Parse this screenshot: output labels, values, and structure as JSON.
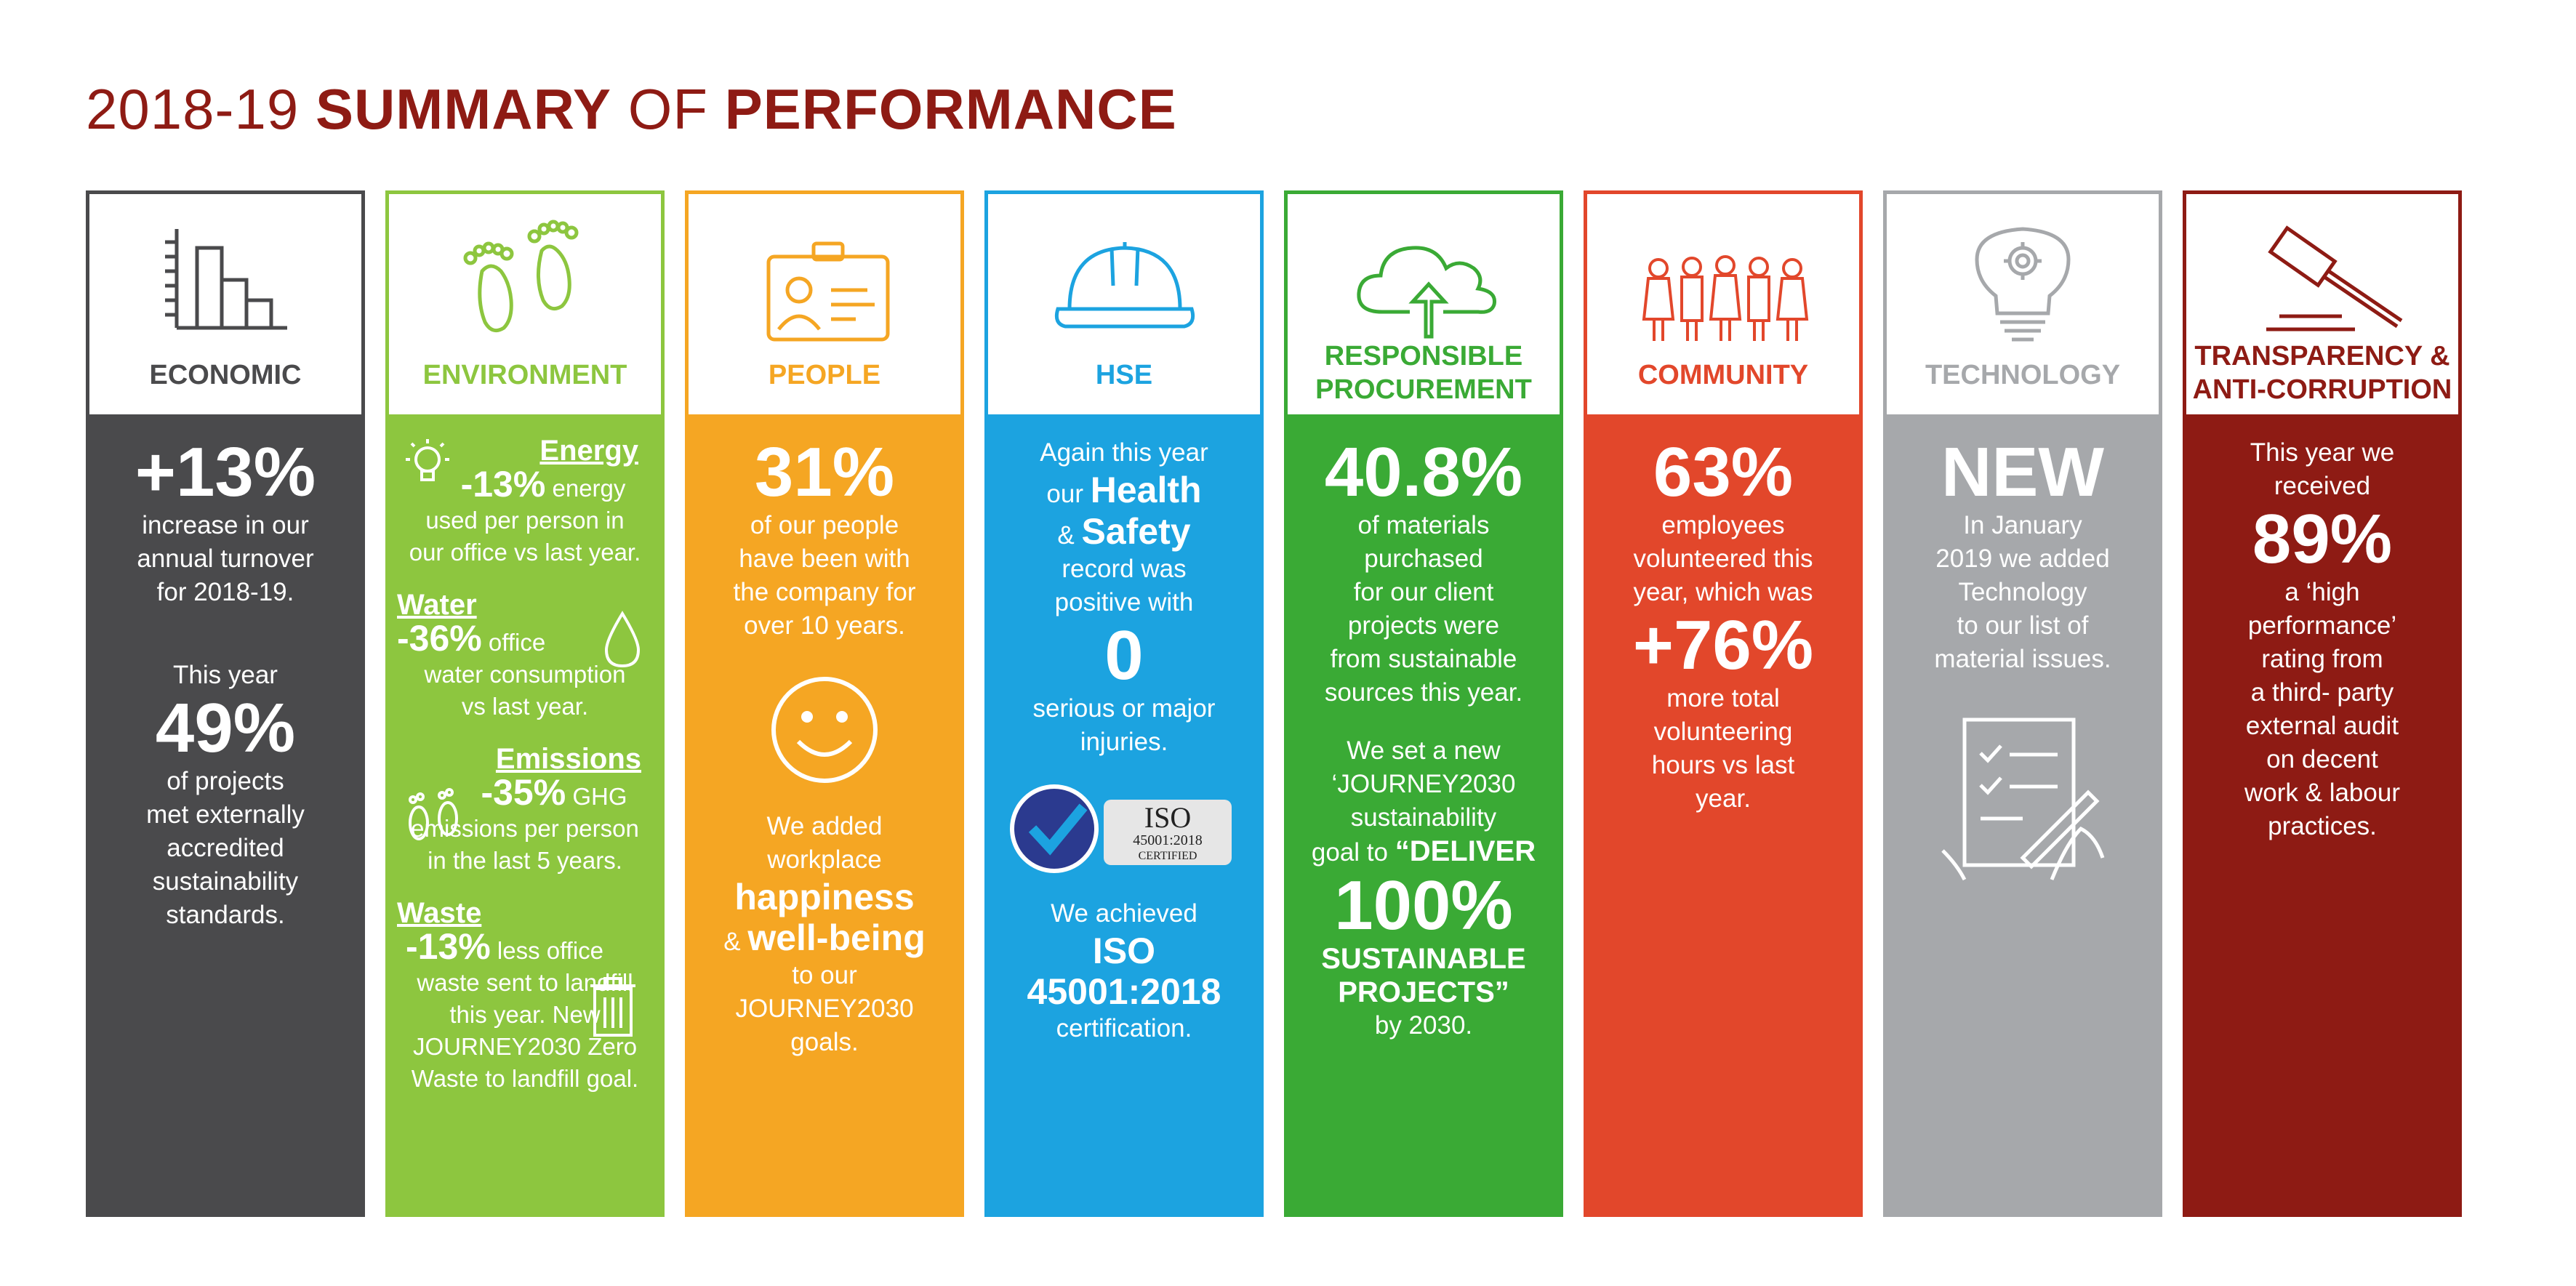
{
  "title": {
    "year": "2018-19",
    "w1": "SUMMARY",
    "w2": "OF",
    "w3": "PERFORMANCE"
  },
  "colors": {
    "economic": "#4a4a4c",
    "environment": "#8dc63f",
    "people": "#f5a623",
    "hse": "#1ca3e0",
    "procurement": "#3aaa35",
    "community": "#e2472b",
    "technology": "#a6a8ab",
    "transparency": "#8e1b14"
  },
  "columns": {
    "economic": {
      "icon": "bar-chart-icon",
      "label": "ECONOMIC",
      "v1": "+13%",
      "t1a": "increase in our",
      "t1b": "annual turnover",
      "t1c": "for 2018-19.",
      "t2": "This year",
      "v2": "49%",
      "t3a": "of projects",
      "t3b": "met externally",
      "t3c": "accredited",
      "t3d": "sustainability",
      "t3e": "standards."
    },
    "environment": {
      "icon": "footprints-icon",
      "label": "ENVIRONMENT",
      "energy_h": "Energy",
      "energy_v": "-13%",
      "energy_t1": "energy",
      "energy_t2": "used per person in",
      "energy_t3": "our office vs last year.",
      "water_h": "Water",
      "water_v": "-36%",
      "water_t1": "office",
      "water_t2": "water consumption",
      "water_t3": "vs last year.",
      "em_h": "Emissions",
      "em_v": "-35%",
      "em_t1": "GHG",
      "em_t2": "emissions per person",
      "em_t3": "in the last 5 years.",
      "waste_h": "Waste",
      "waste_v": "-13%",
      "waste_t1": "less office",
      "waste_t2": "waste sent to landfill",
      "waste_t3": "this year.  New",
      "waste_t4": "JOURNEY2030 Zero",
      "waste_t5": "Waste to landfill  goal."
    },
    "people": {
      "icon": "id-badge-icon",
      "label": "PEOPLE",
      "v1": "31%",
      "t1a": "of our people",
      "t1b": "have been with",
      "t1c": "the company for",
      "t1d": "over 10 years.",
      "t2a": "We added",
      "t2b": "workplace",
      "t2c": "happiness",
      "t2d": "&",
      "t2e": "well-being",
      "t2f": "to our",
      "t2g": "JOURNEY2030",
      "t2h": "goals."
    },
    "hse": {
      "icon": "hard-hat-icon",
      "label": "HSE",
      "t1a": "Again this year",
      "t1b": "our",
      "t1c": "Health",
      "t1d": "&",
      "t1e": "Safety",
      "t1f": "record was",
      "t1g": "positive with",
      "v1": "0",
      "t2a": "serious or major",
      "t2b": "injuries.",
      "iso_mark": "ISO",
      "iso_num": "45001:2018",
      "iso_cert": "CERTIFIED",
      "t3a": "We achieved",
      "t3b": "ISO",
      "t3c": "45001:2018",
      "t3d": "certification."
    },
    "procurement": {
      "icon": "cloud-upload-icon",
      "label1": "RESPONSIBLE",
      "label2": "PROCUREMENT",
      "v1": "40.8%",
      "t1a": "of materials",
      "t1b": "purchased",
      "t1c": "for our client",
      "t1d": "projects were",
      "t1e": "from sustainable",
      "t1f": "sources this year.",
      "t2a": "We set a new",
      "t2b": "‘JOURNEY2030",
      "t2c": "sustainability",
      "t2d": "goal to",
      "t2e": "“DELIVER",
      "v2": "100%",
      "t2f": "SUSTAINABLE",
      "t2g": "PROJECTS”",
      "t2h": "by 2030."
    },
    "community": {
      "icon": "people-group-icon",
      "label": "COMMUNITY",
      "v1": "63%",
      "t1a": "employees",
      "t1b": "volunteered this",
      "t1c": "year, which was",
      "v2": "+76%",
      "t2a": "more total",
      "t2b": "volunteering",
      "t2c": "hours vs last",
      "t2d": "year."
    },
    "technology": {
      "icon": "lightbulb-gear-icon",
      "label": "TECHNOLOGY",
      "v1": "NEW",
      "t1a": "In January",
      "t1b": "2019 we added",
      "t1c": "Technology",
      "t1d": "to our list of",
      "t1e": "material issues.",
      "icon2": "signing-document-icon"
    },
    "transparency": {
      "icon": "gavel-icon",
      "label1": "TRANSPARENCY &",
      "label2": "ANTI-CORRUPTION",
      "t1a": "This year we",
      "t1b": "received",
      "v1": "89%",
      "t2a": "a ‘high",
      "t2b": "performance’",
      "t2c": "rating from",
      "t2d": "a third- party",
      "t2e": "external audit",
      "t2f": "on decent",
      "t2g": "work & labour",
      "t2h": "practices."
    }
  }
}
